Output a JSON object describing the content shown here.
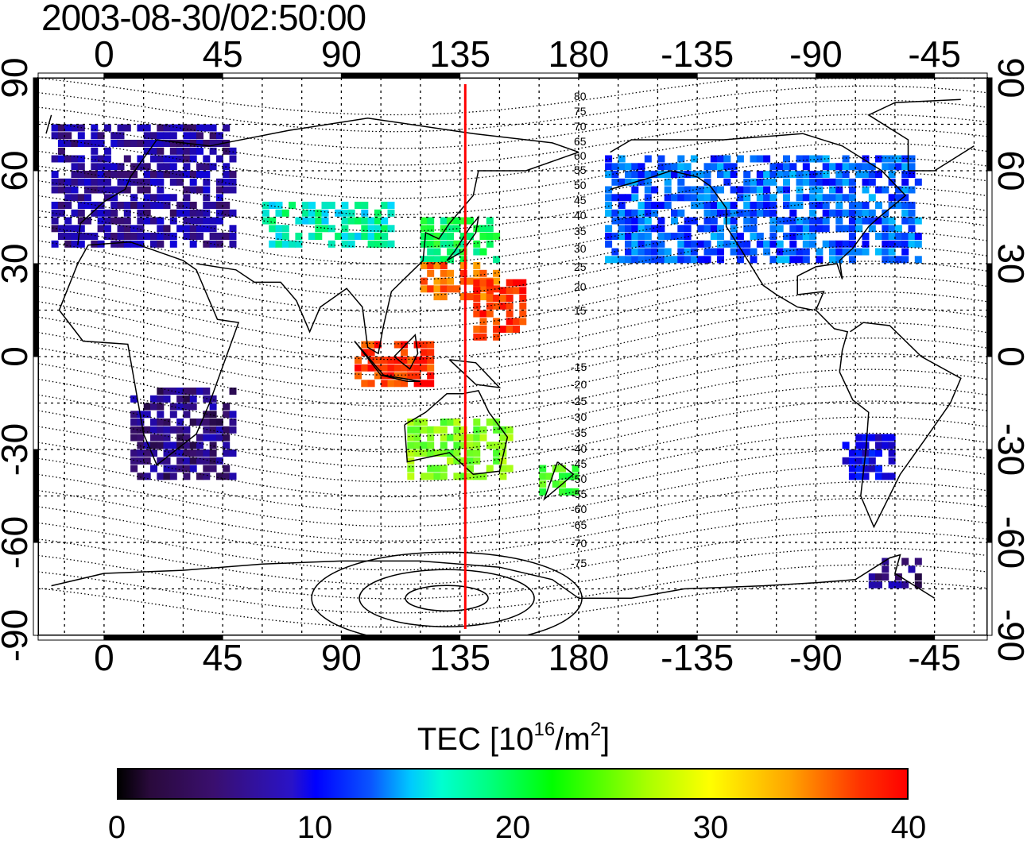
{
  "title": "2003-08-30/02:50:00",
  "top_axis_ticks": [
    "0",
    "45",
    "90",
    "135",
    "180",
    "-135",
    "-90",
    "-45"
  ],
  "bottom_axis_ticks": [
    "0",
    "45",
    "90",
    "135",
    "180",
    "-135",
    "-90",
    "-45"
  ],
  "left_axis_ticks": [
    "90",
    "60",
    "30",
    "0",
    "-30",
    "-60",
    "-90"
  ],
  "right_axis_ticks": [
    "90",
    "60",
    "30",
    "0",
    "-30",
    "-60",
    "-90"
  ],
  "contour_labels_north": [
    "80",
    "75",
    "70",
    "65",
    "60",
    "55",
    "50",
    "45",
    "40",
    "35",
    "30",
    "25",
    "20",
    "15"
  ],
  "contour_labels_south": [
    "-15",
    "-20",
    "-25",
    "-30",
    "-35",
    "-40",
    "-45",
    "-50",
    "-55",
    "-60",
    "-65",
    "-70",
    "-75"
  ],
  "colorbar": {
    "title_main": "TEC  [10",
    "title_exp1": "16",
    "title_mid": "/m",
    "title_exp2": "2",
    "title_end": "]",
    "min": 0,
    "max": 40,
    "ticks": [
      "0",
      "10",
      "20",
      "30",
      "40"
    ],
    "colors": [
      "#000000",
      "#3a0f6e",
      "#0000ff",
      "#00ffff",
      "#00ff00",
      "#ffff00",
      "#ff0000"
    ]
  },
  "marker": {
    "longitude": 137,
    "color": "#ff0000"
  },
  "chart_data": {
    "type": "heatmap",
    "title": "2003-08-30/02:50:00",
    "variable": "TEC",
    "unit": "10^16/m^2",
    "x_axis": {
      "label": "",
      "range": [
        -25,
        335
      ],
      "ticks": [
        0,
        45,
        90,
        135,
        180,
        -135,
        -90,
        -45
      ]
    },
    "y_axis": {
      "label": "",
      "range": [
        -90,
        90
      ],
      "ticks": [
        90,
        60,
        30,
        0,
        -30,
        -60,
        -90
      ]
    },
    "color_range": [
      0,
      40
    ],
    "regions": [
      {
        "lon": [
          -20,
          50
        ],
        "lat": [
          35,
          75
        ],
        "tec": 6
      },
      {
        "lon": [
          10,
          50
        ],
        "lat": [
          -40,
          -10
        ],
        "tec": 5
      },
      {
        "lon": [
          60,
          110
        ],
        "lat": [
          35,
          50
        ],
        "tec": 17
      },
      {
        "lon": [
          120,
          150
        ],
        "lat": [
          30,
          45
        ],
        "tec": 20
      },
      {
        "lon": [
          120,
          150
        ],
        "lat": [
          18,
          30
        ],
        "tec": 36
      },
      {
        "lon": [
          140,
          160
        ],
        "lat": [
          5,
          25
        ],
        "tec": 38
      },
      {
        "lon": [
          95,
          125
        ],
        "lat": [
          -10,
          5
        ],
        "tec": 38
      },
      {
        "lon": [
          115,
          155
        ],
        "lat": [
          -40,
          -20
        ],
        "tec": 25
      },
      {
        "lon": [
          165,
          180
        ],
        "lat": [
          -45,
          -35
        ],
        "tec": 23
      },
      {
        "lon": [
          -170,
          -50
        ],
        "lat": [
          30,
          65
        ],
        "tec": 12
      },
      {
        "lon": [
          -80,
          -60
        ],
        "lat": [
          -40,
          -25
        ],
        "tec": 9
      },
      {
        "lon": [
          -70,
          -50
        ],
        "lat": [
          -75,
          -65
        ],
        "tec": 5
      }
    ]
  }
}
